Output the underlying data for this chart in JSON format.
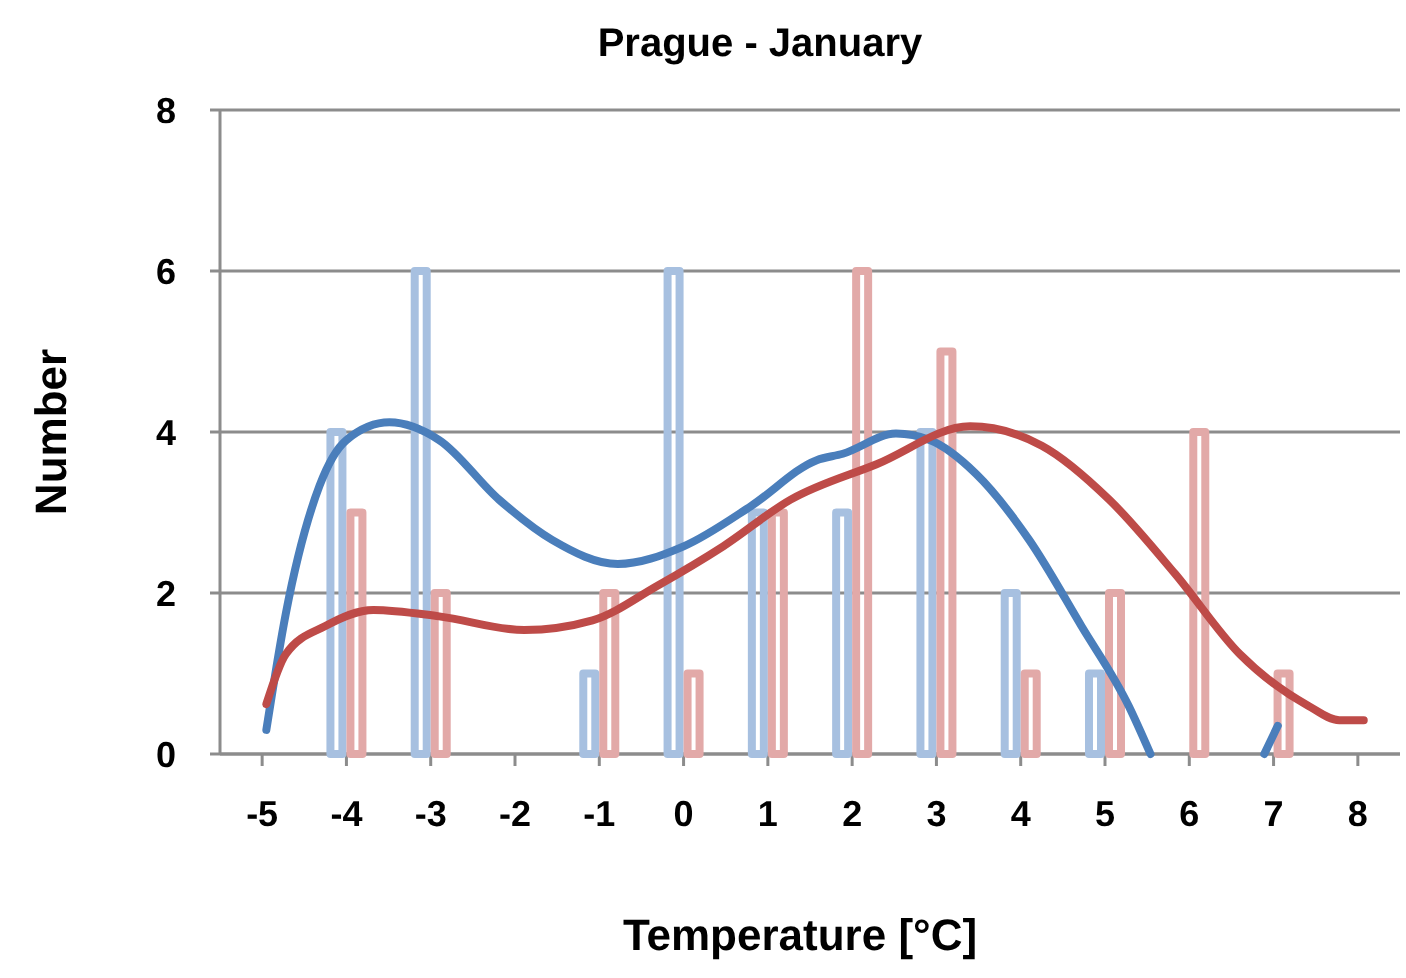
{
  "chart_data": {
    "type": "bar",
    "title": "Prague - January",
    "xlabel": "Temperature [°C]",
    "ylabel": "Number",
    "x": [
      -5,
      -4,
      -3,
      -2,
      -1,
      0,
      1,
      2,
      3,
      4,
      5,
      6,
      7,
      8
    ],
    "xlim": [
      -5.5,
      8.5
    ],
    "xticks": [
      -5,
      -4,
      -3,
      -2,
      -1,
      0,
      1,
      2,
      3,
      4,
      5,
      6,
      7,
      8
    ],
    "ylim": [
      0,
      8
    ],
    "yticks": [
      0,
      2,
      4,
      6,
      8
    ],
    "grid": "y",
    "series": [
      {
        "color": "#a7c0e0",
        "values": [
          0,
          4,
          6,
          0,
          1,
          6,
          3,
          3,
          4,
          2,
          1,
          0,
          0,
          0
        ]
      },
      {
        "color": "#e2a9a8",
        "values": [
          0,
          3,
          2,
          0,
          2,
          1,
          3,
          6,
          5,
          1,
          2,
          4,
          1,
          0
        ]
      },
      {
        "type": "line",
        "color": "#4a7ebb",
        "x": [
          -4.95,
          -4.72,
          -4.32,
          -4.0,
          -3.49,
          -2.9,
          -2.19,
          -1.56,
          -0.78,
          0,
          0.8,
          1.58,
          1.89,
          2.52,
          2.92,
          3.47,
          4.1,
          4.72,
          5.28,
          5.54,
          6.2,
          6.89,
          7.05
        ],
        "values": [
          0.3,
          1.74,
          3.33,
          3.9,
          4.12,
          3.9,
          3.16,
          2.66,
          2.36,
          2.58,
          3.08,
          3.65,
          3.73,
          3.98,
          3.9,
          3.48,
          2.66,
          1.59,
          0.6,
          0,
          null,
          0,
          0.35
        ]
      },
      {
        "type": "line",
        "color": "#be4b48",
        "x": [
          -4.95,
          -4.72,
          -4.25,
          -3.68,
          -2.9,
          -1.89,
          -1.08,
          -0.31,
          0.47,
          1.27,
          2.29,
          3.4,
          4.25,
          5.05,
          5.83,
          6.6,
          7.41,
          7.78,
          8.07
        ],
        "values": [
          0.62,
          1.24,
          1.59,
          1.79,
          1.71,
          1.54,
          1.66,
          2.09,
          2.58,
          3.16,
          3.6,
          4.07,
          3.83,
          3.16,
          2.24,
          1.24,
          0.6,
          0.42,
          0.42
        ]
      }
    ]
  }
}
